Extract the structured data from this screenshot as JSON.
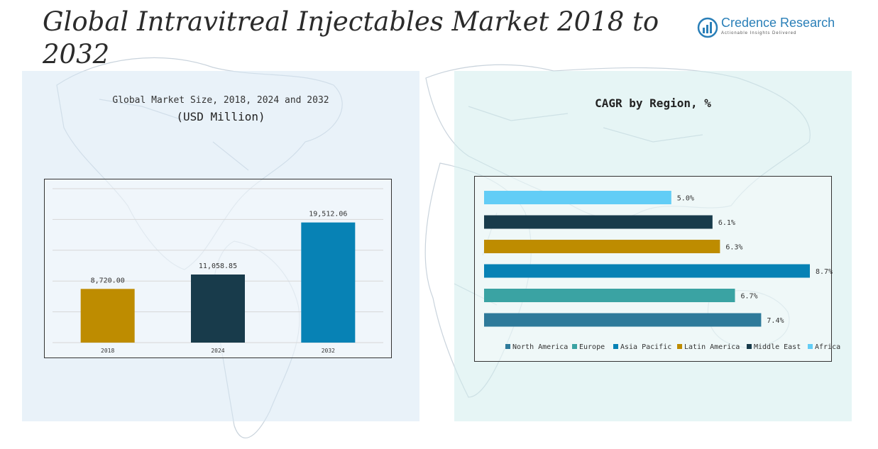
{
  "title": "Global Intravitreal Injectables Market 2018 to 2032",
  "logo": {
    "name": "Credence Research",
    "tagline": "Actionable Insights Delivered",
    "icon": "bar-chart-logo-icon"
  },
  "colors": {
    "north_america": "#2e7a9a",
    "europe": "#3aa3a3",
    "asia_pacific": "#0782b5",
    "latin_america": "#be8c00",
    "middle_east": "#183b4b",
    "africa": "#62cdf6",
    "year_2018": "#be8c00",
    "year_2024": "#183b4b",
    "year_2032": "#0782b5"
  },
  "chart_data": [
    {
      "type": "bar",
      "title": "Global Market Size, 2018, 2024 and 2032",
      "subtitle": "(USD Million)",
      "categories": [
        "2018",
        "2024",
        "2032"
      ],
      "values": [
        8720.0,
        11058.85,
        19512.06
      ],
      "value_labels": [
        "8,720.00",
        "11,058.85",
        "19,512.06"
      ],
      "ylim": [
        0,
        25000
      ],
      "grid": true
    },
    {
      "type": "bar",
      "orientation": "horizontal",
      "title": "CAGR by Region, %",
      "categories": [
        "North America",
        "Europe",
        "Asia Pacific",
        "Latin America",
        "Middle East",
        "Africa"
      ],
      "values": [
        7.4,
        6.7,
        8.7,
        6.3,
        6.1,
        5.0
      ],
      "value_labels": [
        "7.4%",
        "6.7%",
        "8.7%",
        "6.3%",
        "6.1%",
        "5.0%"
      ],
      "xlim": [
        0,
        8.7
      ],
      "legend_position": "bottom"
    }
  ]
}
